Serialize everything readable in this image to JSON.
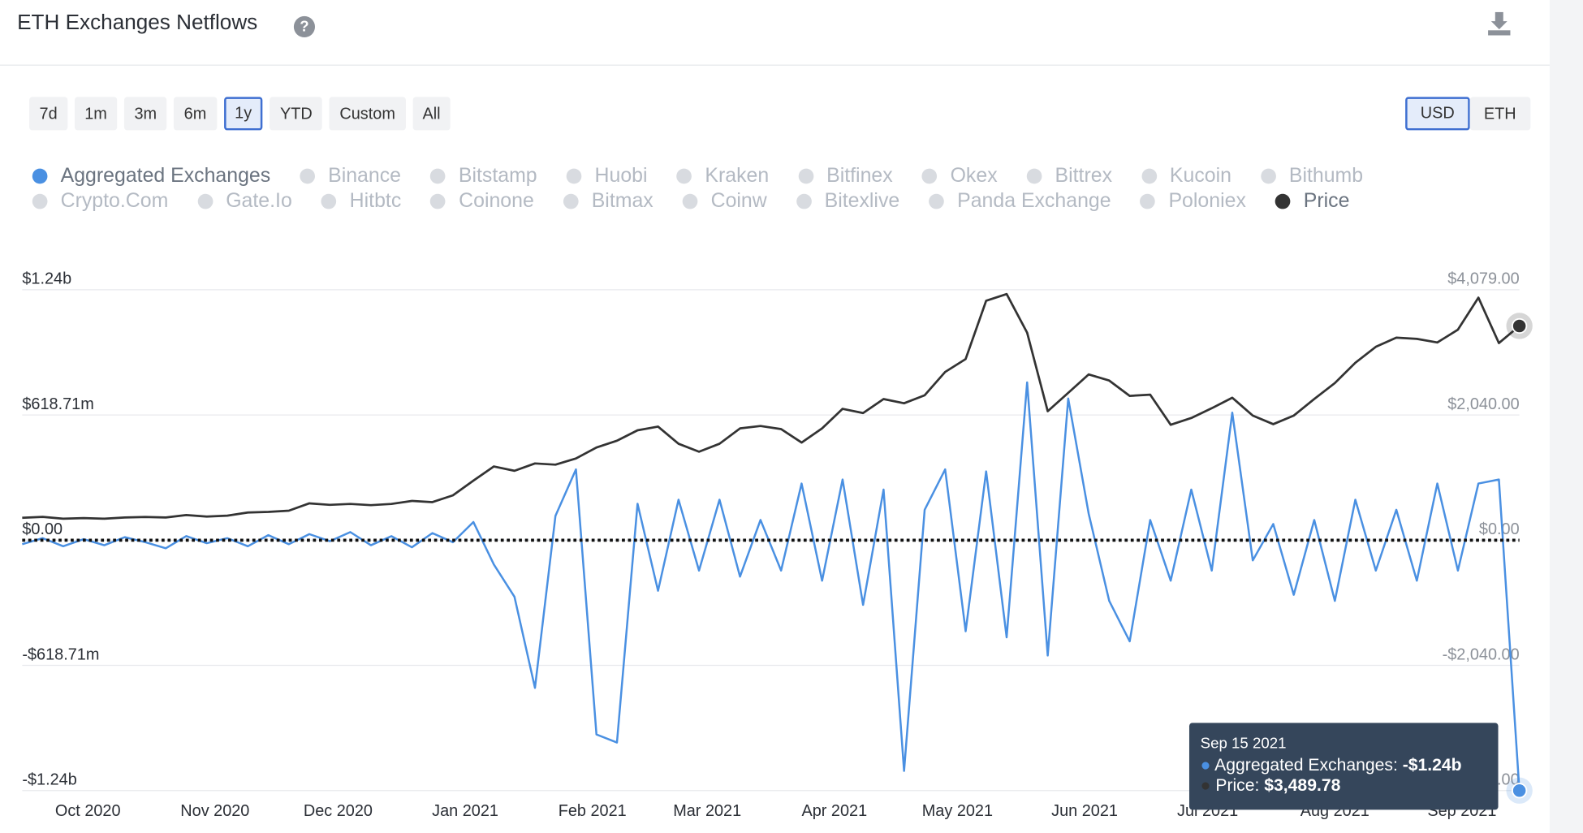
{
  "header": {
    "title": "ETH Exchanges Netflows",
    "ranges": [
      "7d",
      "1m",
      "3m",
      "6m",
      "1y",
      "YTD",
      "Custom",
      "All"
    ],
    "active_range": 4,
    "currencies": [
      "USD",
      "ETH"
    ],
    "active_currency": 0
  },
  "chart_data": {
    "type": "line",
    "x": [
      "2020-09-15",
      "2020-09-20",
      "2020-09-25",
      "2020-09-30",
      "2020-10-05",
      "2020-10-10",
      "2020-10-15",
      "2020-10-20",
      "2020-10-25",
      "2020-10-30",
      "2020-11-04",
      "2020-11-09",
      "2020-11-14",
      "2020-11-19",
      "2020-11-24",
      "2020-11-29",
      "2020-12-04",
      "2020-12-09",
      "2020-12-14",
      "2020-12-19",
      "2020-12-24",
      "2020-12-29",
      "2021-01-03",
      "2021-01-08",
      "2021-01-13",
      "2021-01-18",
      "2021-01-23",
      "2021-01-28",
      "2021-02-02",
      "2021-02-07",
      "2021-02-12",
      "2021-02-17",
      "2021-02-22",
      "2021-02-27",
      "2021-03-04",
      "2021-03-09",
      "2021-03-14",
      "2021-03-19",
      "2021-03-24",
      "2021-03-29",
      "2021-04-03",
      "2021-04-08",
      "2021-04-13",
      "2021-04-18",
      "2021-04-23",
      "2021-04-28",
      "2021-05-03",
      "2021-05-08",
      "2021-05-13",
      "2021-05-18",
      "2021-05-23",
      "2021-05-28",
      "2021-06-02",
      "2021-06-07",
      "2021-06-12",
      "2021-06-17",
      "2021-06-22",
      "2021-06-27",
      "2021-07-02",
      "2021-07-07",
      "2021-07-12",
      "2021-07-17",
      "2021-07-22",
      "2021-07-27",
      "2021-08-01",
      "2021-08-06",
      "2021-08-11",
      "2021-08-16",
      "2021-08-21",
      "2021-08-26",
      "2021-08-31",
      "2021-09-05",
      "2021-09-10",
      "2021-09-15"
    ],
    "xlim": [
      "2020-09-15",
      "2021-09-15"
    ],
    "xticks": [
      {
        "value": "2020-10-01",
        "label": "Oct 2020"
      },
      {
        "value": "2020-11-01",
        "label": "Nov 2020"
      },
      {
        "value": "2020-12-01",
        "label": "Dec 2020"
      },
      {
        "value": "2021-01-01",
        "label": "Jan 2021"
      },
      {
        "value": "2021-02-01",
        "label": "Feb 2021"
      },
      {
        "value": "2021-03-01",
        "label": "Mar 2021"
      },
      {
        "value": "2021-04-01",
        "label": "Apr 2021"
      },
      {
        "value": "2021-05-01",
        "label": "May 2021"
      },
      {
        "value": "2021-06-01",
        "label": "Jun 2021"
      },
      {
        "value": "2021-07-01",
        "label": "Jul 2021"
      },
      {
        "value": "2021-08-01",
        "label": "Aug 2021"
      },
      {
        "value": "2021-09-01",
        "label": "Sep 2021"
      }
    ],
    "ylim": [
      -1237420000,
      1237420000
    ],
    "yticks": [
      {
        "value": 1237420000,
        "label": "$1.24b"
      },
      {
        "value": 618710000,
        "label": "$618.71m"
      },
      {
        "value": 0,
        "label": "$0.00"
      },
      {
        "value": -618710000,
        "label": "-$618.71m"
      },
      {
        "value": -1237420000,
        "label": "-$1.24b"
      }
    ],
    "y2lim": [
      -4079,
      4079
    ],
    "y2ticks": [
      {
        "value": 4079,
        "label": "$4,079.00"
      },
      {
        "value": 2040,
        "label": "$2,040.00"
      },
      {
        "value": 0,
        "label": "$0.00"
      },
      {
        "value": -2040,
        "label": "-$2,040.00"
      },
      {
        "value": -4079,
        "label": "-$4,079.00"
      }
    ],
    "grid": true,
    "zero_line": true,
    "series": [
      {
        "name": "Aggregated Exchanges",
        "color": "#4a90e2",
        "values": [
          -20000000,
          10000000,
          -30000000,
          5000000,
          -25000000,
          15000000,
          -10000000,
          -40000000,
          20000000,
          -15000000,
          10000000,
          -30000000,
          25000000,
          -20000000,
          30000000,
          -5000000,
          40000000,
          -25000000,
          20000000,
          -35000000,
          35000000,
          -10000000,
          90000000,
          -120000000,
          -280000000,
          -730000000,
          120000000,
          350000000,
          -960000000,
          -1000000000,
          180000000,
          -250000000,
          200000000,
          -150000000,
          200000000,
          -180000000,
          100000000,
          -150000000,
          280000000,
          -200000000,
          300000000,
          -320000000,
          250000000,
          -1140000000,
          150000000,
          350000000,
          -450000000,
          340000000,
          -480000000,
          780000000,
          -570000000,
          700000000,
          130000000,
          -300000000,
          -500000000,
          100000000,
          -200000000,
          250000000,
          -150000000,
          630000000,
          -100000000,
          80000000,
          -270000000,
          100000000,
          -300000000,
          200000000,
          -150000000,
          150000000,
          -200000000,
          280000000,
          -150000000,
          280000000,
          300000000,
          -1237420000
        ]
      },
      {
        "name": "Price",
        "color": "#333333",
        "axis": "y2",
        "values": [
          365,
          380,
          350,
          360,
          350,
          370,
          378,
          370,
          410,
          385,
          400,
          450,
          460,
          480,
          600,
          575,
          590,
          570,
          590,
          640,
          620,
          730,
          970,
          1200,
          1130,
          1250,
          1230,
          1330,
          1510,
          1620,
          1790,
          1850,
          1570,
          1440,
          1570,
          1820,
          1860,
          1810,
          1590,
          1820,
          2140,
          2070,
          2300,
          2230,
          2360,
          2740,
          2950,
          3900,
          4010,
          3380,
          2100,
          2400,
          2700,
          2600,
          2350,
          2370,
          1880,
          1990,
          2150,
          2320,
          2030,
          1890,
          2030,
          2300,
          2560,
          2890,
          3150,
          3300,
          3280,
          3220,
          3430,
          3950,
          3210,
          3489.78
        ]
      }
    ],
    "hidden_series": [
      "Binance",
      "Bitstamp",
      "Huobi",
      "Kraken",
      "Bitfinex",
      "Okex",
      "Bittrex",
      "Kucoin",
      "Bithumb",
      "Crypto.Com",
      "Gate.Io",
      "Hitbtc",
      "Coinone",
      "Bitmax",
      "Coinw",
      "Bitexlive",
      "Panda Exchange",
      "Poloniex"
    ],
    "tooltip": {
      "date": "Sep 15 2021",
      "rows": [
        {
          "label": "Aggregated Exchanges:",
          "value": "-$1.24b"
        },
        {
          "label": "Price:",
          "value": "$3,489.78"
        }
      ]
    }
  }
}
